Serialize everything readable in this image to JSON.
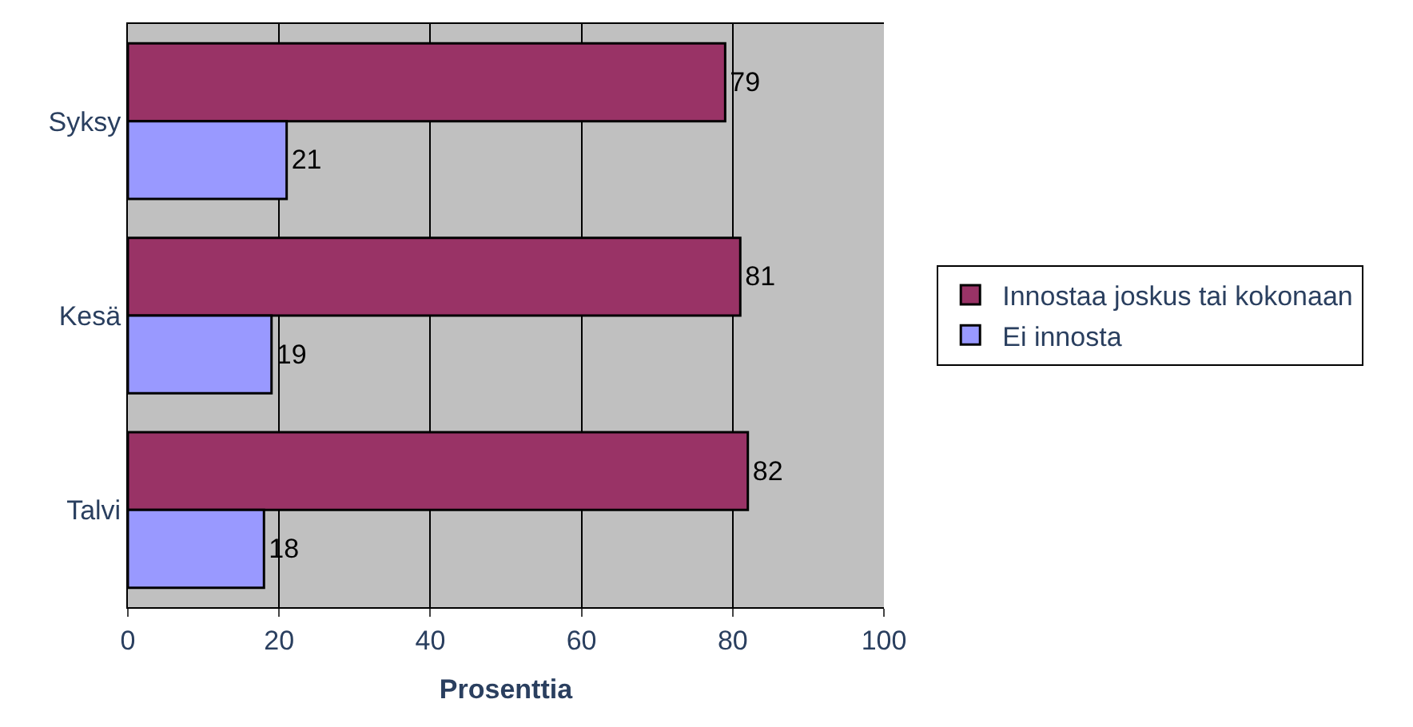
{
  "chart_data": {
    "type": "bar",
    "orientation": "horizontal",
    "xlabel": "Prosenttia",
    "categories": [
      "Syksy",
      "Kesä",
      "Talvi"
    ],
    "series": [
      {
        "name": "Innostaa joskus tai kokonaan",
        "color": "#993366",
        "values": [
          79,
          81,
          82
        ]
      },
      {
        "name": "Ei innosta",
        "color": "#9999ff",
        "values": [
          21,
          19,
          18
        ]
      }
    ],
    "xlim": [
      0,
      100
    ],
    "xticks": [
      0,
      20,
      40,
      60,
      80,
      100
    ],
    "grid": "x",
    "legend": "right",
    "data_labels": true
  }
}
